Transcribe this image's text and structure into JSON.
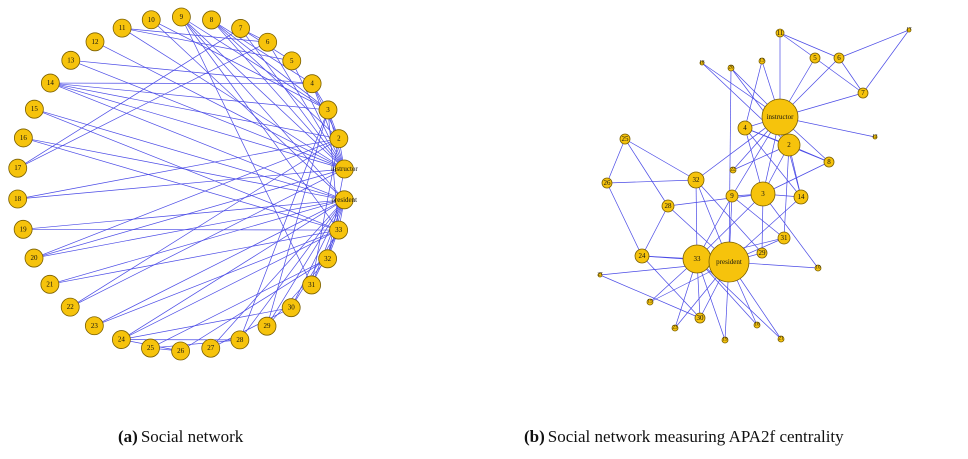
{
  "nodes": [
    "instructor",
    "2",
    "3",
    "4",
    "5",
    "6",
    "7",
    "8",
    "9",
    "10",
    "11",
    "12",
    "13",
    "14",
    "15",
    "16",
    "17",
    "18",
    "19",
    "20",
    "21",
    "22",
    "23",
    "24",
    "25",
    "26",
    "27",
    "28",
    "29",
    "30",
    "31",
    "32",
    "33",
    "president"
  ],
  "captions": [
    {
      "tag": "(a)",
      "text": "Social network"
    },
    {
      "tag": "(b)",
      "text": "Social network measuring APA2f centrality"
    }
  ]
}
